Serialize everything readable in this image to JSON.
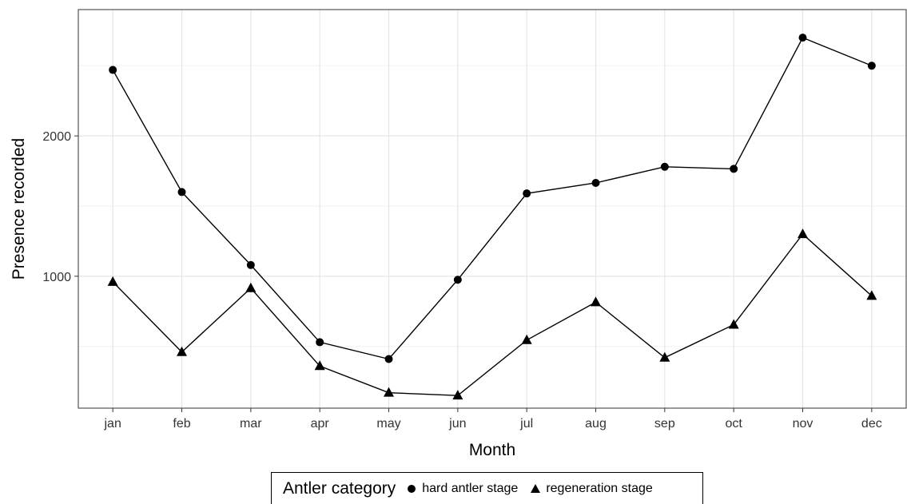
{
  "chart_data": {
    "type": "line",
    "title": "",
    "xlabel": "Month",
    "ylabel": "Presence recorded",
    "categories": [
      "jan",
      "feb",
      "mar",
      "apr",
      "may",
      "jun",
      "jul",
      "aug",
      "sep",
      "oct",
      "nov",
      "dec"
    ],
    "ylim": [
      60,
      2900
    ],
    "yticks": [
      1000,
      2000
    ],
    "grid": true,
    "legend_position": "bottom",
    "legend_title": "Antler category",
    "series": [
      {
        "name": "hard antler stage",
        "marker": "circle",
        "values": [
          2470,
          1600,
          1080,
          530,
          410,
          975,
          1590,
          1665,
          1780,
          1765,
          2700,
          2500
        ]
      },
      {
        "name": "regeneration stage",
        "marker": "triangle",
        "values": [
          960,
          460,
          915,
          360,
          170,
          150,
          545,
          815,
          420,
          655,
          1300,
          860
        ]
      }
    ],
    "colors": {
      "line": "#000000",
      "grid_major": "#e5e5e5",
      "grid_minor": "#f2f2f2",
      "panel_border": "#333333"
    }
  }
}
